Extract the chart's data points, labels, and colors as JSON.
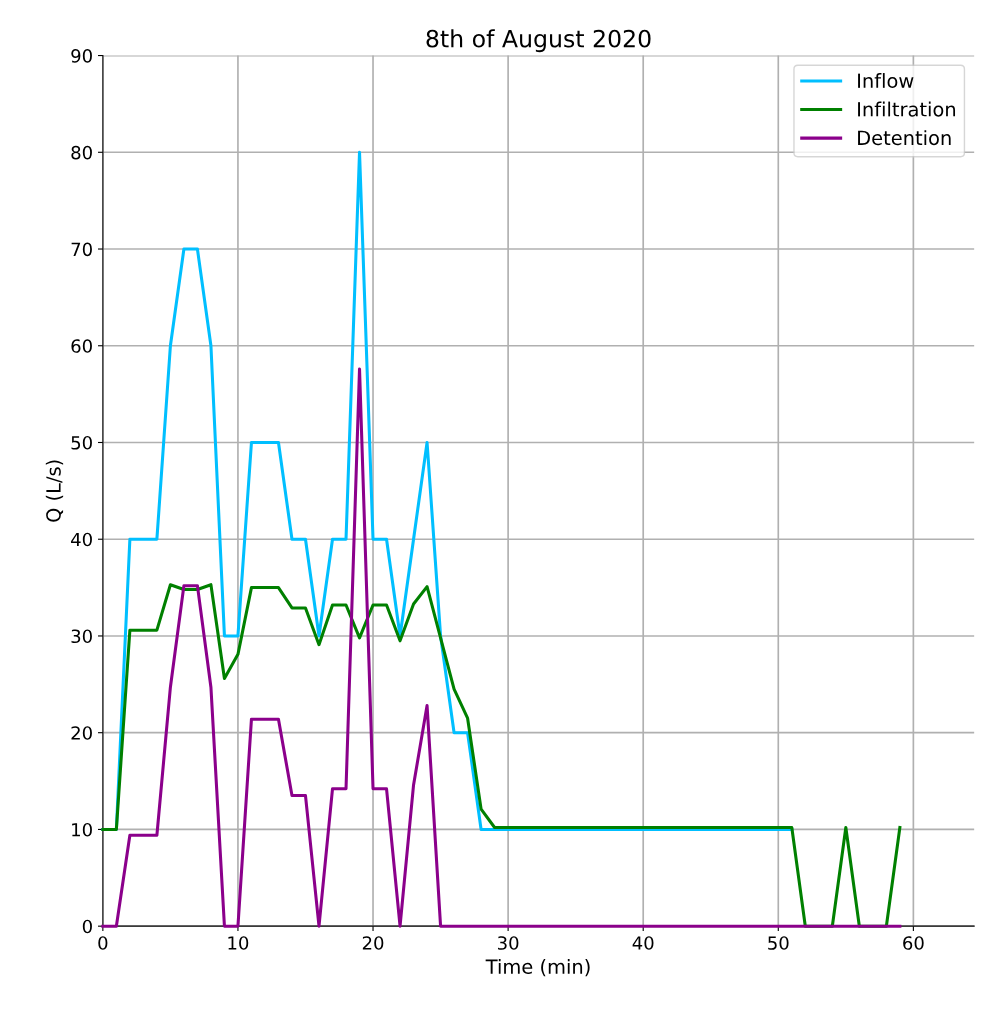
{
  "chart_data": {
    "type": "line",
    "title": "8th of August 2020",
    "xlabel": "Time (min)",
    "ylabel": "Q (L/s)",
    "x": [
      0,
      1,
      2,
      3,
      4,
      5,
      6,
      7,
      8,
      9,
      10,
      11,
      12,
      13,
      14,
      15,
      16,
      17,
      18,
      19,
      20,
      21,
      22,
      23,
      24,
      25,
      26,
      27,
      28,
      29,
      30,
      31,
      32,
      33,
      34,
      35,
      36,
      37,
      38,
      39,
      40,
      41,
      42,
      43,
      44,
      45,
      46,
      47,
      48,
      49,
      50,
      51,
      52,
      53,
      54,
      55,
      56,
      57,
      58,
      59
    ],
    "series": [
      {
        "name": "Inflow",
        "color": "#00bfff",
        "values": [
          10,
          10,
          40,
          40,
          40,
          60,
          70,
          70,
          60,
          30,
          30,
          50,
          50,
          50,
          40,
          40,
          30,
          40,
          40,
          80,
          40,
          40,
          30,
          40,
          50,
          30,
          20,
          20,
          10,
          10,
          10,
          10,
          10,
          10,
          10,
          10,
          10,
          10,
          10,
          10,
          10,
          10,
          10,
          10,
          10,
          10,
          10,
          10,
          10,
          10,
          10,
          10,
          null,
          null,
          null,
          null,
          null,
          null,
          null,
          null
        ]
      },
      {
        "name": "Infiltration",
        "color": "#008000",
        "values": [
          10,
          10,
          30.6,
          30.6,
          30.6,
          35.3,
          34.8,
          34.8,
          35.3,
          25.6,
          28.1,
          35,
          35,
          35,
          32.9,
          32.9,
          29.1,
          33.2,
          33.2,
          29.8,
          33.2,
          33.2,
          29.5,
          33.3,
          35.1,
          29.8,
          24.5,
          21.5,
          12.1,
          10.2,
          10.2,
          10.2,
          10.2,
          10.2,
          10.2,
          10.2,
          10.2,
          10.2,
          10.2,
          10.2,
          10.2,
          10.2,
          10.2,
          10.2,
          10.2,
          10.2,
          10.2,
          10.2,
          10.2,
          10.2,
          10.2,
          10.2,
          0,
          0,
          0,
          10.2,
          0,
          0,
          0,
          10.2
        ]
      },
      {
        "name": "Detention",
        "color": "#8b008b",
        "values": [
          0,
          0,
          9.4,
          9.4,
          9.4,
          24.7,
          35.2,
          35.2,
          24.7,
          0,
          0,
          21.4,
          21.4,
          21.4,
          13.5,
          13.5,
          0,
          14.2,
          14.2,
          57.6,
          14.2,
          14.2,
          0,
          14.6,
          22.8,
          0,
          0,
          0,
          0,
          0,
          0,
          0,
          0,
          0,
          0,
          0,
          0,
          0,
          0,
          0,
          0,
          0,
          0,
          0,
          0,
          0,
          0,
          0,
          0,
          0,
          0,
          0,
          0,
          0,
          0,
          0,
          0,
          0,
          0,
          0
        ]
      }
    ],
    "xlim": [
      0,
      64.5
    ],
    "ylim": [
      0,
      90
    ],
    "xticks": [
      0,
      10,
      20,
      30,
      40,
      50,
      60
    ],
    "yticks": [
      0,
      10,
      20,
      30,
      40,
      50,
      60,
      70,
      80,
      90
    ],
    "grid": true,
    "legend": "top right",
    "line_style": "solid",
    "marker": "none"
  }
}
